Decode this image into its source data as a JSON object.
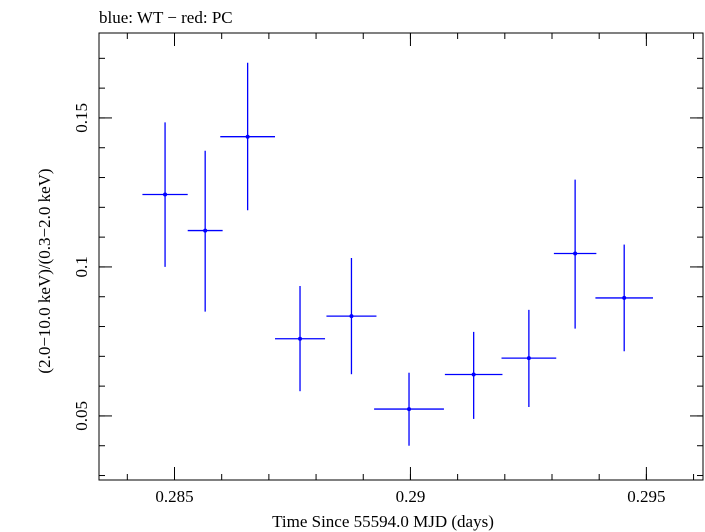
{
  "chart_data": {
    "type": "scatter",
    "title": "blue: WT − red: PC",
    "xlabel": "Time Since 55594.0 MJD (days)",
    "ylabel": "(2.0−10.0 keV)/(0.3−2.0 keV)",
    "xlim": [
      0.2834,
      0.2962
    ],
    "ylim": [
      0.0285,
      0.1785
    ],
    "x_ticks": [
      {
        "value": 0.285,
        "label": "0.285"
      },
      {
        "value": 0.29,
        "label": "0.29"
      },
      {
        "value": 0.295,
        "label": "0.295"
      }
    ],
    "y_ticks": [
      {
        "value": 0.05,
        "label": "0.05"
      },
      {
        "value": 0.1,
        "label": "0.1"
      },
      {
        "value": 0.15,
        "label": "0.15"
      }
    ],
    "x_minor_step": 0.001,
    "y_minor_step": 0.01,
    "grid": false,
    "series": [
      {
        "name": "WT",
        "color": "#0000ff",
        "points": [
          {
            "x": 0.2848,
            "xerr": 0.00048,
            "y": 0.1243,
            "yerr_low": 0.0243,
            "yerr_high": 0.0242
          },
          {
            "x": 0.28565,
            "xerr": 0.00037,
            "y": 0.1122,
            "yerr_low": 0.0272,
            "yerr_high": 0.0268
          },
          {
            "x": 0.28655,
            "xerr": 0.00058,
            "y": 0.1437,
            "yerr_low": 0.0247,
            "yerr_high": 0.0248
          },
          {
            "x": 0.28766,
            "xerr": 0.00053,
            "y": 0.0759,
            "yerr_low": 0.0176,
            "yerr_high": 0.0177
          },
          {
            "x": 0.28875,
            "xerr": 0.00053,
            "y": 0.0835,
            "yerr_low": 0.0195,
            "yerr_high": 0.0195
          },
          {
            "x": 0.28997,
            "xerr": 0.00074,
            "y": 0.0523,
            "yerr_low": 0.0123,
            "yerr_high": 0.0122
          },
          {
            "x": 0.29134,
            "xerr": 0.00061,
            "y": 0.0639,
            "yerr_low": 0.0149,
            "yerr_high": 0.0143
          },
          {
            "x": 0.29251,
            "xerr": 0.00058,
            "y": 0.0694,
            "yerr_low": 0.0164,
            "yerr_high": 0.0162
          },
          {
            "x": 0.29349,
            "xerr": 0.00045,
            "y": 0.1045,
            "yerr_low": 0.0252,
            "yerr_high": 0.0248
          },
          {
            "x": 0.29453,
            "xerr": 0.00061,
            "y": 0.0896,
            "yerr_low": 0.0179,
            "yerr_high": 0.0179
          }
        ]
      }
    ]
  }
}
